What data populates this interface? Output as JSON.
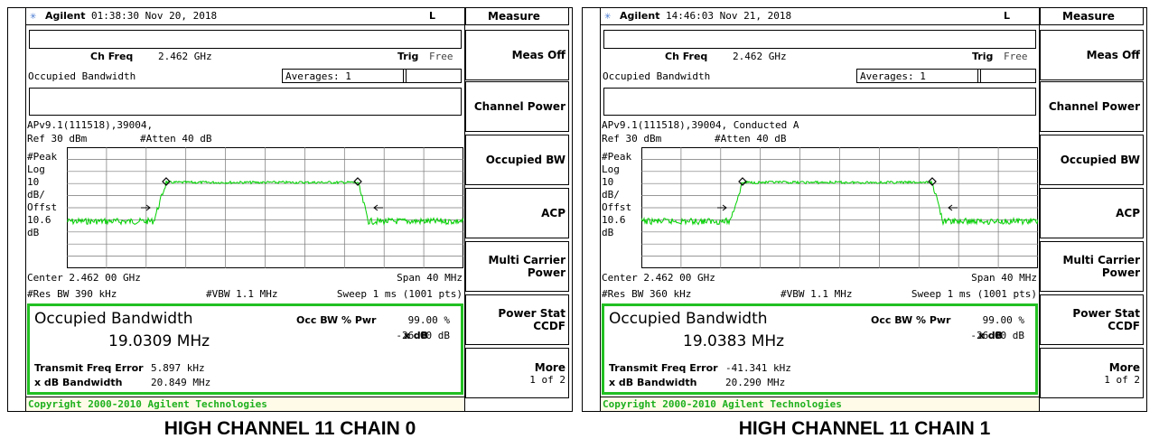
{
  "panels": [
    {
      "header": {
        "brand": "Agilent",
        "datetime": "01:38:30  Nov 20, 2018",
        "flag": "L"
      },
      "ch_freq_label": "Ch Freq",
      "ch_freq": "2.462 GHz",
      "trig_label": "Trig",
      "trig": "Free",
      "meas_name": "Occupied Bandwidth",
      "averages": "Averages: 1",
      "title_line": "APv9.1(111518),39004,",
      "ref": "Ref 30 dBm",
      "atten": "#Atten 40 dB",
      "scale_labels": [
        "#Peak",
        "Log",
        "10",
        "dB/",
        "Offst",
        "10.6",
        "dB"
      ],
      "center": "Center 2.462 00 GHz",
      "span": "Span 40 MHz",
      "res_bw": "#Res BW 390 kHz",
      "vbw": "#VBW 1.1 MHz",
      "sweep": "Sweep 1 ms (1001 pts)",
      "result": {
        "title": "Occupied Bandwidth",
        "occ_bw": "19.0309 MHz",
        "pwr_label": "Occ BW % Pwr",
        "pwr": "99.00 %",
        "xdb_label": "x dB",
        "xdb": "-26.00 dB",
        "tfe_label": "Transmit Freq Error",
        "tfe": "5.897 kHz",
        "xdbbw_label": "x dB Bandwidth",
        "xdbbw": "20.849 MHz"
      },
      "copyright": "Copyright 2000-2010 Agilent Technologies",
      "caption": "HIGH CHANNEL 11 CHAIN 0",
      "menu": {
        "title": "Measure",
        "softkeys": [
          [
            "Meas Off"
          ],
          [
            "Channel Power"
          ],
          [
            "Occupied BW"
          ],
          [
            "ACP"
          ],
          [
            "Multi Carrier",
            "Power"
          ],
          [
            "Power Stat",
            "CCDF"
          ],
          [
            "More",
            "1 of 2"
          ]
        ]
      }
    },
    {
      "header": {
        "brand": "Agilent",
        "datetime": "14:46:03  Nov 21, 2018",
        "flag": "L"
      },
      "ch_freq_label": "Ch Freq",
      "ch_freq": "2.462 GHz",
      "trig_label": "Trig",
      "trig": "Free",
      "meas_name": "Occupied Bandwidth",
      "averages": "Averages: 1",
      "title_line": "APv9.1(111518),39004, Conducted A",
      "ref": "Ref 30 dBm",
      "atten": "#Atten 40 dB",
      "scale_labels": [
        "#Peak",
        "Log",
        "10",
        "dB/",
        "Offst",
        "10.6",
        "dB"
      ],
      "center": "Center 2.462 00 GHz",
      "span": "Span 40 MHz",
      "res_bw": "#Res BW 360 kHz",
      "vbw": "#VBW 1.1 MHz",
      "sweep": "Sweep 1 ms (1001 pts)",
      "result": {
        "title": "Occupied Bandwidth",
        "occ_bw": "19.0383 MHz",
        "pwr_label": "Occ BW % Pwr",
        "pwr": "99.00 %",
        "xdb_label": "x dB",
        "xdb": "-26.00 dB",
        "tfe_label": "Transmit Freq Error",
        "tfe": "-41.341 kHz",
        "xdbbw_label": "x dB Bandwidth",
        "xdbbw": "20.290 MHz"
      },
      "copyright": "Copyright 2000-2010 Agilent Technologies",
      "caption": "HIGH CHANNEL 11 CHAIN 1",
      "menu": {
        "title": "Measure",
        "softkeys": [
          [
            "Meas Off"
          ],
          [
            "Channel Power"
          ],
          [
            "Occupied BW"
          ],
          [
            "ACP"
          ],
          [
            "Multi Carrier",
            "Power"
          ],
          [
            "Power Stat",
            "CCDF"
          ],
          [
            "More",
            "1 of 2"
          ]
        ]
      }
    }
  ]
}
